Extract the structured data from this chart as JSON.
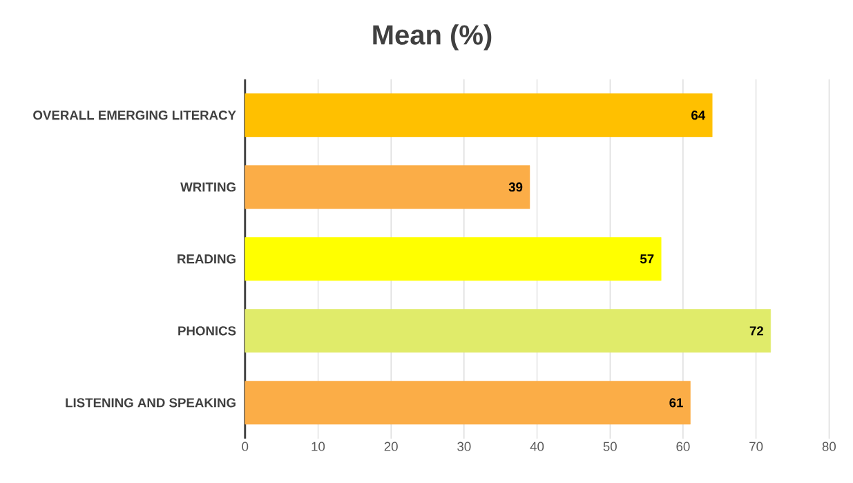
{
  "chart_data": {
    "type": "bar",
    "orientation": "horizontal",
    "title": "Mean (%)",
    "categories": [
      "OVERALL EMERGING LITERACY",
      "WRITING",
      "READING",
      "PHONICS",
      "LISTENING AND SPEAKING"
    ],
    "values": [
      64,
      39,
      57,
      72,
      61
    ],
    "colors": [
      "#ffc000",
      "#fbad47",
      "#ffff00",
      "#e0eb6a",
      "#fbad47"
    ],
    "xlim": [
      0,
      80
    ],
    "xticks": [
      0,
      10,
      20,
      30,
      40,
      50,
      60,
      70,
      80
    ],
    "grid": "x",
    "data_labels": true
  }
}
